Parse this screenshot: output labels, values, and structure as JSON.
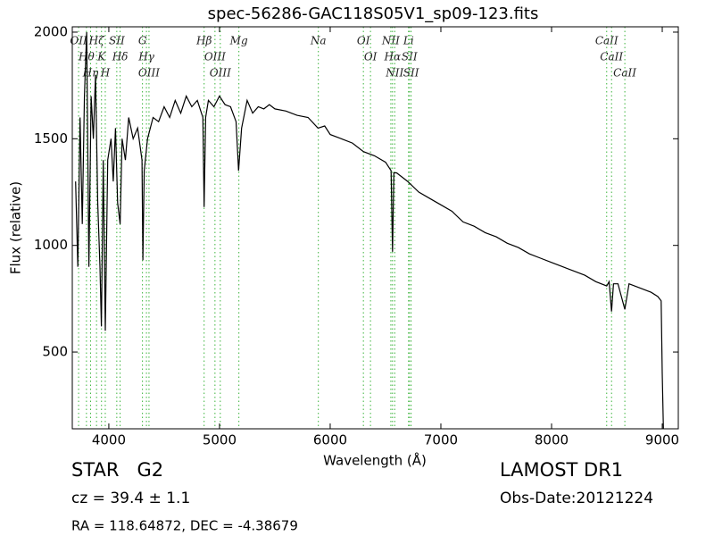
{
  "chart_data": {
    "type": "line",
    "title": "spec-56286-GAC118S05V1_sp09-123.fits",
    "x_label": "Wavelength (Å)",
    "y_label": "Flux (relative)",
    "xlim": [
      3670,
      9145
    ],
    "ylim": [
      140,
      2025
    ],
    "xticks": [
      4000,
      5000,
      6000,
      7000,
      8000,
      9000
    ],
    "yticks": [
      500,
      1000,
      1500,
      2000
    ],
    "color": "#000000",
    "annotation_color": "#3cb43c",
    "x": [
      3700,
      3720,
      3740,
      3760,
      3780,
      3800,
      3820,
      3840,
      3860,
      3880,
      3900,
      3920,
      3933,
      3950,
      3968,
      3990,
      4020,
      4040,
      4060,
      4080,
      4102,
      4120,
      4150,
      4180,
      4220,
      4260,
      4300,
      4308,
      4320,
      4350,
      4400,
      4450,
      4500,
      4550,
      4600,
      4650,
      4700,
      4750,
      4800,
      4850,
      4861,
      4875,
      4900,
      4950,
      5000,
      5050,
      5100,
      5150,
      5172,
      5200,
      5250,
      5300,
      5350,
      5400,
      5450,
      5500,
      5600,
      5700,
      5800,
      5890,
      5950,
      6000,
      6100,
      6200,
      6300,
      6400,
      6500,
      6550,
      6563,
      6575,
      6600,
      6700,
      6800,
      6900,
      7000,
      7100,
      7200,
      7300,
      7400,
      7500,
      7600,
      7700,
      7800,
      7900,
      8000,
      8100,
      8200,
      8300,
      8400,
      8498,
      8520,
      8542,
      8560,
      8600,
      8662,
      8700,
      8800,
      8900,
      8960,
      8990,
      9000,
      9010
    ],
    "values": [
      1300,
      900,
      1600,
      1100,
      1700,
      2000,
      900,
      1700,
      1500,
      1800,
      1200,
      900,
      620,
      1400,
      600,
      1400,
      1500,
      1300,
      1550,
      1200,
      1100,
      1500,
      1400,
      1600,
      1500,
      1550,
      1400,
      930,
      1350,
      1500,
      1600,
      1580,
      1650,
      1600,
      1680,
      1620,
      1700,
      1650,
      1680,
      1600,
      1180,
      1600,
      1680,
      1650,
      1700,
      1660,
      1650,
      1580,
      1350,
      1550,
      1680,
      1620,
      1650,
      1640,
      1660,
      1640,
      1630,
      1610,
      1600,
      1550,
      1560,
      1520,
      1500,
      1480,
      1440,
      1420,
      1390,
      1350,
      970,
      1340,
      1340,
      1300,
      1250,
      1220,
      1190,
      1160,
      1110,
      1090,
      1060,
      1040,
      1010,
      990,
      960,
      940,
      920,
      900,
      880,
      860,
      830,
      810,
      830,
      690,
      820,
      820,
      700,
      820,
      800,
      780,
      760,
      740,
      400,
      140
    ],
    "annotations": [
      {
        "label": "OII",
        "x": 3727
      },
      {
        "label": "Hθ",
        "x": 3798
      },
      {
        "label": "Hη",
        "x": 3835
      },
      {
        "label": "Hζ",
        "x": 3889
      },
      {
        "label": "K",
        "x": 3934
      },
      {
        "label": "H",
        "x": 3968
      },
      {
        "label": "SII",
        "x": 4072
      },
      {
        "label": "Hδ",
        "x": 4102
      },
      {
        "label": "G",
        "x": 4304
      },
      {
        "label": "Hγ",
        "x": 4340
      },
      {
        "label": "OIII",
        "x": 4363
      },
      {
        "label": "Hβ",
        "x": 4861
      },
      {
        "label": "OIII",
        "x": 4959
      },
      {
        "label": "OIII",
        "x": 5007
      },
      {
        "label": "Mg",
        "x": 5175
      },
      {
        "label": "Na",
        "x": 5893
      },
      {
        "label": "OI",
        "x": 6300
      },
      {
        "label": "OI",
        "x": 6364
      },
      {
        "label": "NII",
        "x": 6548
      },
      {
        "label": "Hα",
        "x": 6563
      },
      {
        "label": "NII",
        "x": 6583
      },
      {
        "label": "Li",
        "x": 6708
      },
      {
        "label": "SII",
        "x": 6716
      },
      {
        "label": "SII",
        "x": 6731
      },
      {
        "label": "CaII",
        "x": 8498
      },
      {
        "label": "CaII",
        "x": 8542
      },
      {
        "label": "CaII",
        "x": 8662
      }
    ]
  },
  "info": {
    "object": "STAR   G2",
    "survey": "LAMOST DR1",
    "cz": "cz = 39.4 ± 1.1",
    "date": "Obs-Date:20121224",
    "coords": "RA = 118.64872, DEC = -4.38679"
  }
}
